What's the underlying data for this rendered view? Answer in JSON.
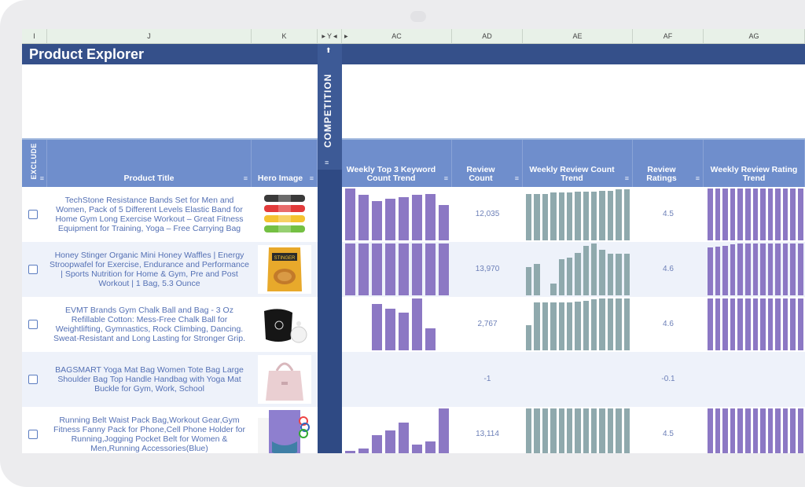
{
  "app": {
    "title": "Product Explorer"
  },
  "colors": {
    "header": "#35508a",
    "subheader": "#6f8ecc",
    "purple_bar": "#8c78c4",
    "teal_bar": "#8fa9ad",
    "text": "#5470b4"
  },
  "columns": [
    "I",
    "J",
    "K",
    "Y",
    "AC",
    "AD",
    "AE",
    "AF",
    "AG"
  ],
  "divider": {
    "label": "COMPETITION",
    "up_icon": "⬆"
  },
  "headers": {
    "exclude": "EXCLUDE",
    "product_title": "Product Title",
    "hero_image": "Hero Image",
    "kw_trend": "Weekly Top 3 Keyword Count Trend",
    "review_count": "Review Count",
    "review_count_trend": "Weekly Review Count Trend",
    "review_ratings": "Review Ratings",
    "review_rating_trend": "Weekly Review Rating Trend",
    "filter_icon": "≡"
  },
  "rows": [
    {
      "title": "TechStone Resistance Bands Set for Men and Women, Pack of 5 Different Levels Elastic Band for Home Gym Long Exercise Workout – Great Fitness Equipment for Training, Yoga – Free Carrying Bag",
      "hero": "resistance-bands",
      "review_count": "12,035",
      "rating": "4.5",
      "kw_trend": [
        1.0,
        0.88,
        0.76,
        0.8,
        0.84,
        0.88,
        0.9,
        0.68
      ],
      "review_trend": [
        0.9,
        0.9,
        0.9,
        0.92,
        0.92,
        0.92,
        0.94,
        0.94,
        0.94,
        0.96,
        0.96,
        0.98,
        0.98
      ],
      "rating_trend": [
        1,
        1,
        1,
        1,
        1,
        1,
        1,
        1,
        1,
        1,
        1,
        1,
        1,
        1,
        1,
        1,
        1
      ]
    },
    {
      "title": "Honey Stinger Organic Mini Honey Waffles | Energy Stroopwafel for Exercise, Endurance and Performance | Sports Nutrition for Home & Gym, Pre and Post Workout | 1 Bag, 5.3 Ounce",
      "hero": "honey-stinger",
      "review_count": "13,970",
      "rating": "4.6",
      "kw_trend": [
        1.0,
        1.0,
        1.0,
        1.0,
        1.0,
        1.0,
        1.0,
        1.0
      ],
      "review_trend": [
        0.55,
        0.6,
        0,
        0.22,
        0.7,
        0.72,
        0.82,
        0.95,
        1.0,
        0.88,
        0.8,
        0.8,
        0.8
      ],
      "rating_trend": [
        0.92,
        0.94,
        0.96,
        0.98,
        1,
        1,
        1,
        1,
        1,
        1,
        1,
        1,
        1,
        1,
        1,
        1,
        1
      ]
    },
    {
      "title": "EVMT Brands Gym Chalk Ball and Bag - 3 Oz Refillable Cotton: Mess-Free Chalk Ball for Weightlifting, Gymnastics, Rock Climbing, Dancing. Sweat-Resistant and Long Lasting for Stronger Grip.",
      "hero": "chalk-bag",
      "review_count": "2,767",
      "rating": "4.6",
      "kw_trend": [
        0,
        0,
        0.9,
        0.8,
        0.72,
        1.0,
        0.42,
        0
      ],
      "review_trend": [
        0.48,
        0.92,
        0.92,
        0.92,
        0.92,
        0.92,
        0.94,
        0.96,
        0.98,
        1.0,
        1.0,
        1.0,
        1.0
      ],
      "rating_trend": [
        1,
        1,
        1,
        1,
        1,
        1,
        1,
        1,
        1,
        1,
        1,
        1,
        1,
        1,
        1,
        1,
        1
      ]
    },
    {
      "title": "BAGSMART Yoga Mat Bag Women Tote Bag Large Shoulder Bag Top Handle Handbag with Yoga Mat Buckle for Gym, Work, School",
      "hero": "tote-bag",
      "review_count": "-1",
      "rating": "-0.1",
      "kw_trend": [
        0,
        0,
        0,
        0,
        0,
        0,
        0,
        0
      ],
      "review_trend": [
        0,
        0,
        0,
        0,
        0,
        0,
        0,
        0,
        0,
        0,
        0,
        0,
        0
      ],
      "rating_trend": [
        0,
        0,
        0,
        0,
        0,
        0,
        0,
        0,
        0,
        0,
        0,
        0,
        0,
        0,
        0,
        0,
        0
      ]
    },
    {
      "title": "Running Belt Waist Pack Bag,Workout Gear,Gym Fitness Fanny Pack for Phone,Cell Phone Holder for Running,Jogging Pocket Belt for Women & Men,Running Accessories(Blue)",
      "hero": "running-belt",
      "review_count": "13,114",
      "rating": "4.5",
      "kw_trend": [
        0.18,
        0.22,
        0.48,
        0.58,
        0.72,
        0.3,
        0.36,
        1.0
      ],
      "review_trend": [
        1,
        1,
        1,
        1,
        1,
        1,
        1,
        1,
        1,
        1,
        1,
        1,
        1
      ],
      "rating_trend": [
        1,
        1,
        1,
        1,
        1,
        1,
        1,
        1,
        1,
        1,
        1,
        1,
        1,
        1,
        1,
        1,
        1
      ]
    }
  ]
}
